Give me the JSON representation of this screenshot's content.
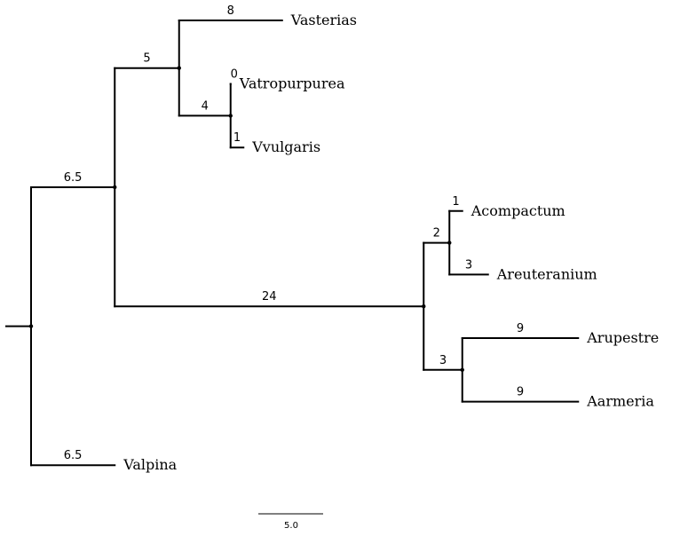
{
  "tree": {
    "root": {
      "id": "root",
      "length": null,
      "children": [
        {
          "id": "clade-v",
          "length": 6.5,
          "children": [
            {
              "id": "clade-v1",
              "length": 5,
              "children": [
                {
                  "id": "vasterias",
                  "name": "Vasterias",
                  "length": 8
                },
                {
                  "id": "clade-v2",
                  "length": 4,
                  "children": [
                    {
                      "id": "vatropurpurea",
                      "name": "Vatropurpurea",
                      "length": 0
                    },
                    {
                      "id": "vvulgaris",
                      "name": "Vvulgaris",
                      "length": 1
                    }
                  ]
                }
              ]
            },
            {
              "id": "clade-a",
              "length": 24,
              "children": [
                {
                  "id": "clade-a1",
                  "length": 2,
                  "children": [
                    {
                      "id": "acompactum",
                      "name": "Acompactum",
                      "length": 1
                    },
                    {
                      "id": "areuteranium",
                      "name": "Areuteranium",
                      "length": 3
                    }
                  ]
                },
                {
                  "id": "clade-a2",
                  "length": 3,
                  "children": [
                    {
                      "id": "arupestre",
                      "name": "Arupestre",
                      "length": 9
                    },
                    {
                      "id": "aarmeria",
                      "name": "Aarmeria",
                      "length": 9
                    }
                  ]
                }
              ]
            }
          ]
        },
        {
          "id": "valpina",
          "name": "Valpina",
          "length": 6.5
        }
      ]
    },
    "scale_bar": {
      "length": 5,
      "label": "5.0"
    }
  }
}
